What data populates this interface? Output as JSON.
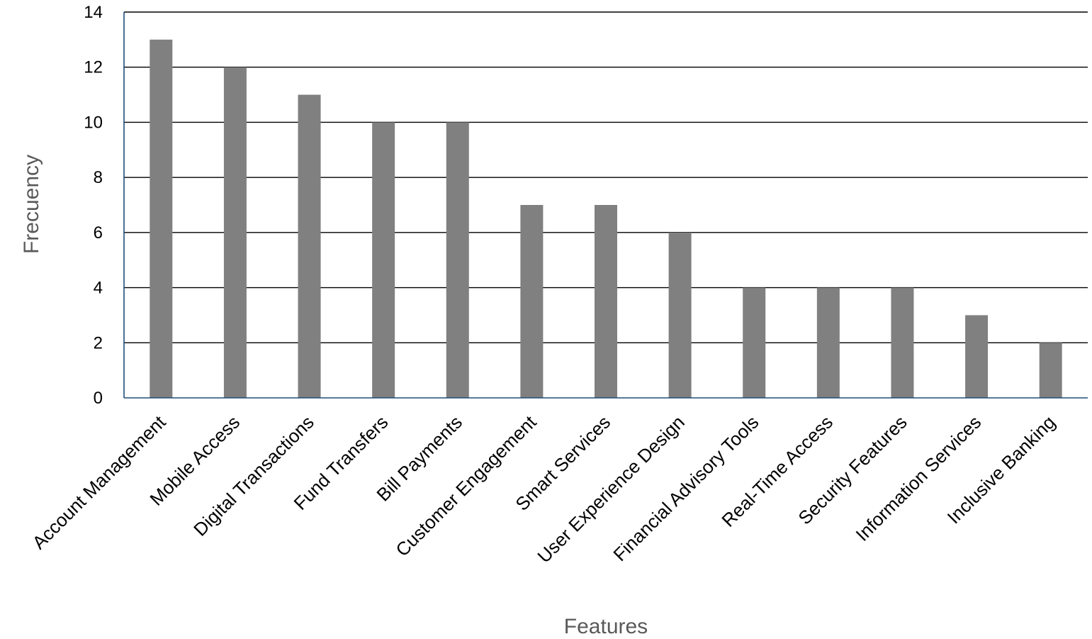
{
  "chart_data": {
    "type": "bar",
    "title": "",
    "xlabel": "Features",
    "ylabel": "Frecuency",
    "categories": [
      "Account Management",
      "Mobile Access",
      "Digital Transactions",
      "Fund Transfers",
      "Bill Payments",
      "Customer Engagement",
      "Smart Services",
      "User Experience Design",
      "Financial Advisory Tools",
      "Real-Time Access",
      "Security Features",
      "Information Services",
      "Inclusive Banking"
    ],
    "values": [
      13,
      12,
      11,
      10,
      10,
      7,
      7,
      6,
      4,
      4,
      4,
      3,
      2
    ],
    "ylim": [
      0,
      14
    ],
    "yticks": [
      "0",
      "2",
      "4",
      "6",
      "8",
      "10",
      "12",
      "14"
    ],
    "grid": true,
    "legend": "none",
    "colors": {
      "bar": "#808080",
      "gridline": "#000000",
      "axis": "#1f4e79",
      "axis_title": "#595959"
    }
  }
}
